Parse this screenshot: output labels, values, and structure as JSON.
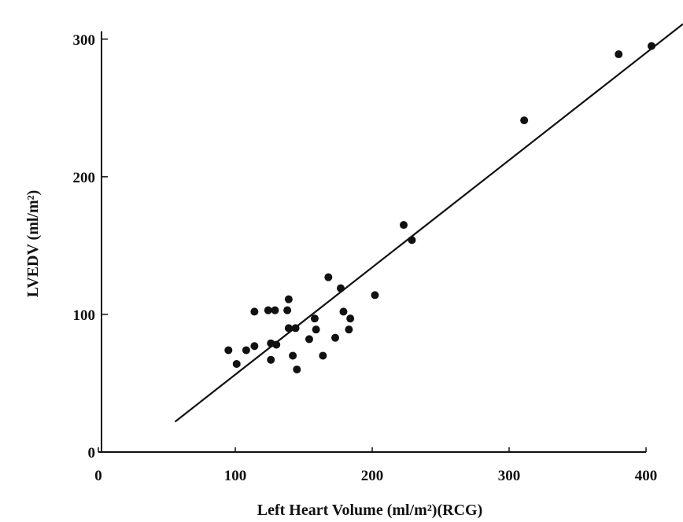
{
  "chart_data": {
    "type": "scatter",
    "x_label": "Left Heart Volume (ml/m²)(RCG)",
    "y_label": "LVEDV (ml/m²)",
    "color": "#111111",
    "xlim": [
      0,
      427
    ],
    "ylim": [
      0,
      325
    ],
    "xticks": [
      0,
      100,
      200,
      300,
      400
    ],
    "yticks": [
      0,
      100,
      200,
      300
    ],
    "x": [
      95,
      101,
      108,
      114,
      114,
      124,
      129,
      138,
      139,
      126,
      130,
      126,
      139,
      144,
      142,
      145,
      154,
      158,
      159,
      164,
      168,
      173,
      177,
      179,
      183,
      184,
      202,
      223,
      229,
      311,
      380,
      404
    ],
    "values": [
      74,
      64,
      74,
      77,
      102,
      103,
      103,
      103,
      111,
      79,
      78,
      67,
      90,
      90,
      70,
      60,
      82,
      97,
      89,
      70,
      127,
      83,
      119,
      102,
      89,
      97,
      114,
      165,
      154,
      241,
      289,
      295
    ],
    "fit_line": {
      "x": [
        56,
        427
      ],
      "y": [
        22,
        311
      ]
    }
  }
}
